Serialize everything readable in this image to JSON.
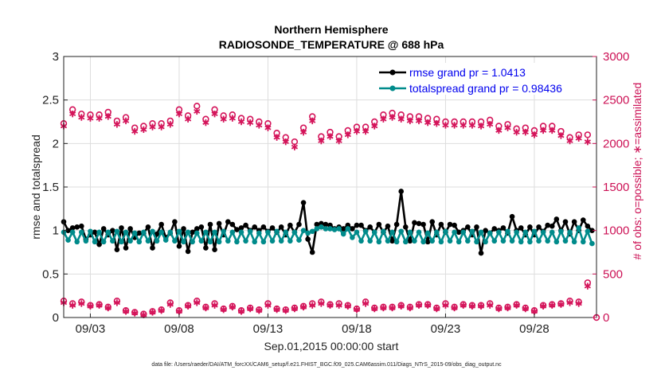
{
  "chart_data": {
    "type": "line",
    "title": "Northern Hemisphere",
    "subtitle": "RADIOSONDE_TEMPERATURE @ 688 hPa",
    "xlabel": "Sep.01,2015 00:00:00 start",
    "ylabel": "rmse and totalspread",
    "ylabel_right": "# of obs: o=possible; ∗=assimilated",
    "footnote": "data file: /Users/raeder/DAI/ATM_forcXX/CAM6_setup/f.e21.FHIST_BGC.f09_025.CAM6assim.011/Diags_NTrS_2015-09/obs_diag_output.nc",
    "xlim": [
      1.5,
      31.5
    ],
    "ylim": [
      0,
      3
    ],
    "ylim_right": [
      0,
      3000
    ],
    "x_ticks": [
      3,
      8,
      13,
      18,
      23,
      28
    ],
    "x_tick_labels": [
      "09/03",
      "09/08",
      "09/13",
      "09/18",
      "09/23",
      "09/28"
    ],
    "y_ticks": [
      0,
      0.5,
      1,
      1.5,
      2,
      2.5,
      3
    ],
    "y_tick_labels": [
      "0",
      "0.5",
      "1",
      "1.5",
      "2",
      "2.5",
      "3"
    ],
    "y_right_ticks": [
      0,
      500,
      1000,
      1500,
      2000,
      2500,
      3000
    ],
    "y_right_tick_labels": [
      "0",
      "500",
      "1000",
      "1500",
      "2000",
      "2500",
      "3000"
    ],
    "grid": true,
    "legend_position": "top-right",
    "colors": {
      "rmse": "#000000",
      "spread": "#008b8b",
      "obs": "#d4145a"
    },
    "series": [
      {
        "name": "rmse",
        "legend": "rmse grand pr = 1.0413",
        "x": [
          1.5,
          1.75,
          2,
          2.25,
          2.5,
          2.75,
          3,
          3.25,
          3.5,
          3.75,
          4,
          4.25,
          4.5,
          4.75,
          5,
          5.25,
          5.5,
          5.75,
          6,
          6.25,
          6.5,
          6.75,
          7,
          7.25,
          7.5,
          7.75,
          8,
          8.25,
          8.5,
          8.75,
          9,
          9.25,
          9.5,
          9.75,
          10,
          10.25,
          10.5,
          10.75,
          11,
          11.25,
          11.5,
          11.75,
          12,
          12.25,
          12.5,
          12.75,
          13,
          13.25,
          13.5,
          13.75,
          14,
          14.25,
          14.5,
          14.75,
          15,
          15.25,
          15.5,
          15.75,
          16,
          16.25,
          16.5,
          16.75,
          17,
          17.25,
          17.5,
          17.75,
          18,
          18.25,
          18.5,
          18.75,
          19,
          19.25,
          19.5,
          19.75,
          20,
          20.25,
          20.5,
          20.75,
          21,
          21.25,
          21.5,
          21.75,
          22,
          22.25,
          22.5,
          22.75,
          23,
          23.25,
          23.5,
          23.75,
          24,
          24.25,
          24.5,
          24.75,
          25,
          25.25,
          25.5,
          25.75,
          26,
          26.25,
          26.5,
          26.75,
          27,
          27.25,
          27.5,
          27.75,
          28,
          28.25,
          28.5,
          28.75,
          29,
          29.25,
          29.5,
          29.75,
          30,
          30.25,
          30.5,
          30.75,
          31,
          31.25
        ],
        "values": [
          1.1,
          1.0,
          1.03,
          1.04,
          1.05,
          0.9,
          0.95,
          0.98,
          0.84,
          1.02,
          0.95,
          1.0,
          0.78,
          1.03,
          0.8,
          1.02,
          0.92,
          0.97,
          0.97,
          1.04,
          0.8,
          0.96,
          1.07,
          0.92,
          0.97,
          1.1,
          0.82,
          1.02,
          0.76,
          0.98,
          1.02,
          1.04,
          0.8,
          1.07,
          0.78,
          1.08,
          0.95,
          1.1,
          1.07,
          1.01,
          1.03,
          1.06,
          1.0,
          1.04,
          1.0,
          1.04,
          0.99,
          1.03,
          0.98,
          1.04,
          0.95,
          1.06,
          0.98,
          1.07,
          1.32,
          0.9,
          0.75,
          1.07,
          1.08,
          1.07,
          1.06,
          1.02,
          1.04,
          1.02,
          1.06,
          1.02,
          1.06,
          1.06,
          1.0,
          1.04,
          0.98,
          1.07,
          0.98,
          1.05,
          0.88,
          1.07,
          1.45,
          1.04,
          0.88,
          1.09,
          1.08,
          1.07,
          0.87,
          1.1,
          0.95,
          1.07,
          0.98,
          1.07,
          1.06,
          0.98,
          1.0,
          1.04,
          0.95,
          1.04,
          0.74,
          1.0,
          0.97,
          1.02,
          1.0,
          1.03,
          0.97,
          1.16,
          1.0,
          1.03,
          0.95,
          1.04,
          0.95,
          1.04,
          0.99,
          1.06,
          1.05,
          1.13,
          1.0,
          1.1,
          0.96,
          1.1,
          1.0,
          1.12,
          1.05,
          1.0
        ]
      },
      {
        "name": "totalspread",
        "legend": "totalspread grand pr = 0.98436",
        "x": [
          1.5,
          1.75,
          2,
          2.25,
          2.5,
          2.75,
          3,
          3.25,
          3.5,
          3.75,
          4,
          4.25,
          4.5,
          4.75,
          5,
          5.25,
          5.5,
          5.75,
          6,
          6.25,
          6.5,
          6.75,
          7,
          7.25,
          7.5,
          7.75,
          8,
          8.25,
          8.5,
          8.75,
          9,
          9.25,
          9.5,
          9.75,
          10,
          10.25,
          10.5,
          10.75,
          11,
          11.25,
          11.5,
          11.75,
          12,
          12.25,
          12.5,
          12.75,
          13,
          13.25,
          13.5,
          13.75,
          14,
          14.25,
          14.5,
          14.75,
          15,
          15.25,
          15.5,
          15.75,
          16,
          16.25,
          16.5,
          16.75,
          17,
          17.25,
          17.5,
          17.75,
          18,
          18.25,
          18.5,
          18.75,
          19,
          19.25,
          19.5,
          19.75,
          20,
          20.25,
          20.5,
          20.75,
          21,
          21.25,
          21.5,
          21.75,
          22,
          22.25,
          22.5,
          22.75,
          23,
          23.25,
          23.5,
          23.75,
          24,
          24.25,
          24.5,
          24.75,
          25,
          25.25,
          25.5,
          25.75,
          26,
          26.25,
          26.5,
          26.75,
          27,
          27.25,
          27.5,
          27.75,
          28,
          28.25,
          28.5,
          28.75,
          29,
          29.25,
          29.5,
          29.75,
          30,
          30.25,
          30.5,
          30.75,
          31,
          31.25
        ],
        "values": [
          0.98,
          0.89,
          0.98,
          0.87,
          0.98,
          0.88,
          0.99,
          0.87,
          0.98,
          0.87,
          0.98,
          0.88,
          0.99,
          0.87,
          0.98,
          0.88,
          0.97,
          0.87,
          0.98,
          0.88,
          0.99,
          0.88,
          0.98,
          0.89,
          0.98,
          0.88,
          0.99,
          0.87,
          0.98,
          0.87,
          0.97,
          0.88,
          0.98,
          0.87,
          0.98,
          0.87,
          0.99,
          0.88,
          0.98,
          0.87,
          0.98,
          0.88,
          0.99,
          0.87,
          0.97,
          0.87,
          0.98,
          0.88,
          0.99,
          0.88,
          0.98,
          0.88,
          0.98,
          0.89,
          1.0,
          0.97,
          0.99,
          1.02,
          1.04,
          1.02,
          1.02,
          1.01,
          1.02,
          0.96,
          1.02,
          0.92,
          0.98,
          0.88,
          0.99,
          0.88,
          0.98,
          0.87,
          0.99,
          0.88,
          0.98,
          0.87,
          0.99,
          0.87,
          0.98,
          0.88,
          0.98,
          0.87,
          0.97,
          0.88,
          0.98,
          0.87,
          0.99,
          0.88,
          0.98,
          0.87,
          0.98,
          0.88,
          0.99,
          0.87,
          0.98,
          0.87,
          0.97,
          0.88,
          0.98,
          0.88,
          0.99,
          0.88,
          0.98,
          0.87,
          0.98,
          0.87,
          0.99,
          0.88,
          0.98,
          0.88,
          0.98,
          0.87,
          0.99,
          0.88,
          0.98,
          0.87,
          1.03,
          0.87,
          0.99,
          0.85
        ]
      },
      {
        "name": "obs_possible",
        "axis": "right",
        "marker": "o",
        "x": [
          1.5,
          2,
          2.5,
          3,
          3.5,
          4,
          4.5,
          5,
          5.5,
          6,
          6.5,
          7,
          7.5,
          8,
          8.5,
          9,
          9.5,
          10,
          10.5,
          11,
          11.5,
          12,
          12.5,
          13,
          13.5,
          14,
          14.5,
          15,
          15.5,
          16,
          16.5,
          17,
          17.5,
          18,
          18.5,
          19,
          19.5,
          20,
          20.5,
          21,
          21.5,
          22,
          22.5,
          23,
          23.5,
          24,
          24.5,
          25,
          25.5,
          26,
          26.5,
          27,
          27.5,
          28,
          28.5,
          29,
          29.5,
          30,
          30.5,
          31
        ],
        "values": [
          2230,
          2390,
          2340,
          2330,
          2330,
          2360,
          2260,
          2300,
          2180,
          2200,
          2230,
          2230,
          2260,
          2390,
          2320,
          2430,
          2280,
          2390,
          2320,
          2330,
          2290,
          2280,
          2250,
          2230,
          2120,
          2070,
          2020,
          2180,
          2310,
          2080,
          2130,
          2080,
          2150,
          2190,
          2190,
          2250,
          2330,
          2350,
          2330,
          2310,
          2310,
          2290,
          2280,
          2250,
          2250,
          2250,
          2250,
          2250,
          2270,
          2200,
          2220,
          2170,
          2180,
          2150,
          2200,
          2200,
          2140,
          2070,
          2100,
          2100
        ]
      },
      {
        "name": "obs_assimilated",
        "axis": "right",
        "marker": "*",
        "x": [
          1.5,
          2,
          2.5,
          3,
          3.5,
          4,
          4.5,
          5,
          5.5,
          6,
          6.5,
          7,
          7.5,
          8,
          8.5,
          9,
          9.5,
          10,
          10.5,
          11,
          11.5,
          12,
          12.5,
          13,
          13.5,
          14,
          14.5,
          15,
          15.5,
          16,
          16.5,
          17,
          17.5,
          18,
          18.5,
          19,
          19.5,
          20,
          20.5,
          21,
          21.5,
          22,
          22.5,
          23,
          23.5,
          24,
          24.5,
          25,
          25.5,
          26,
          26.5,
          27,
          27.5,
          28,
          28.5,
          29,
          29.5,
          30,
          30.5,
          31
        ],
        "values": [
          2200,
          2340,
          2300,
          2290,
          2290,
          2310,
          2220,
          2260,
          2140,
          2160,
          2190,
          2190,
          2220,
          2340,
          2280,
          2370,
          2240,
          2340,
          2280,
          2290,
          2250,
          2240,
          2210,
          2180,
          2070,
          2020,
          1960,
          2130,
          2260,
          2030,
          2080,
          2030,
          2100,
          2140,
          2140,
          2200,
          2280,
          2300,
          2280,
          2260,
          2260,
          2240,
          2230,
          2210,
          2210,
          2210,
          2210,
          2200,
          2220,
          2150,
          2180,
          2130,
          2130,
          2100,
          2150,
          2150,
          2090,
          2030,
          2060,
          2020
        ]
      },
      {
        "name": "obs_possible_bottom",
        "axis": "right",
        "marker": "o",
        "x": [
          1.5,
          2,
          2.5,
          3,
          3.5,
          4,
          4.5,
          5,
          5.5,
          6,
          6.5,
          7,
          7.5,
          8,
          8.5,
          9,
          9.5,
          10,
          10.5,
          11,
          11.5,
          12,
          12.5,
          13,
          13.5,
          14,
          14.5,
          15,
          15.5,
          16,
          16.5,
          17,
          17.5,
          18,
          18.5,
          19,
          19.5,
          20,
          20.5,
          21,
          21.5,
          22,
          22.5,
          23,
          23.5,
          24,
          24.5,
          25,
          25.5,
          26,
          26.5,
          27,
          27.5,
          28,
          28.5,
          29,
          29.5,
          30,
          30.5,
          31
        ],
        "values": [
          190,
          160,
          180,
          140,
          150,
          120,
          190,
          80,
          60,
          40,
          70,
          90,
          170,
          80,
          140,
          190,
          120,
          160,
          100,
          130,
          80,
          110,
          90,
          160,
          100,
          90,
          110,
          130,
          160,
          180,
          150,
          160,
          140,
          100,
          180,
          110,
          120,
          120,
          140,
          120,
          150,
          150,
          110,
          160,
          120,
          150,
          140,
          140,
          160,
          110,
          120,
          150,
          110,
          80,
          140,
          150,
          160,
          190,
          180,
          400
        ]
      },
      {
        "name": "obs_assimilated_bottom",
        "axis": "right",
        "marker": "*",
        "x": [
          1.5,
          2,
          2.5,
          3,
          3.5,
          4,
          4.5,
          5,
          5.5,
          6,
          6.5,
          7,
          7.5,
          8,
          8.5,
          9,
          9.5,
          10,
          10.5,
          11,
          11.5,
          12,
          12.5,
          13,
          13.5,
          14,
          14.5,
          15,
          15.5,
          16,
          16.5,
          17,
          17.5,
          18,
          18.5,
          19,
          19.5,
          20,
          20.5,
          21,
          21.5,
          22,
          22.5,
          23,
          23.5,
          24,
          24.5,
          25,
          25.5,
          26,
          26.5,
          27,
          27.5,
          28,
          28.5,
          29,
          29.5,
          30,
          30.5,
          31
        ],
        "values": [
          170,
          140,
          160,
          130,
          140,
          110,
          170,
          70,
          50,
          30,
          60,
          80,
          150,
          70,
          130,
          170,
          110,
          140,
          90,
          120,
          70,
          100,
          80,
          140,
          90,
          80,
          100,
          120,
          140,
          160,
          140,
          140,
          130,
          90,
          160,
          100,
          110,
          110,
          130,
          110,
          140,
          140,
          100,
          140,
          110,
          140,
          130,
          130,
          140,
          100,
          110,
          140,
          100,
          70,
          130,
          140,
          150,
          170,
          160,
          360
        ]
      }
    ],
    "extra_points": [
      {
        "x": 31.5,
        "value": 0,
        "axis": "right",
        "marker": "o"
      }
    ]
  }
}
